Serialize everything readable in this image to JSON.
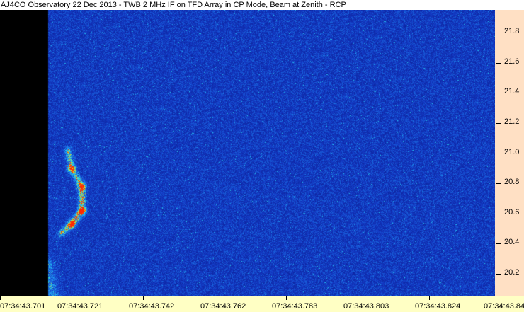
{
  "title": "AJ4CO Observatory 22 Dec 2013 - TWB 2 MHz IF on TFD Array in CP Mode, Beam at Zenith - RCP",
  "chart_data": {
    "type": "heatmap",
    "title": "AJ4CO Observatory 22 Dec 2013 - TWB 2 MHz IF on TFD Array in CP Mode, Beam at Zenith - RCP",
    "xlabel": "",
    "ylabel": "",
    "x_tick_labels": [
      "07:34:43.701",
      "07:34:43.721",
      "07:34:43.742",
      "07:34:43.762",
      "07:34:43.783",
      "07:34:43.803",
      "07:34:43.824",
      "07:34:43.844"
    ],
    "y_ticks": [
      21.8,
      21.6,
      21.4,
      21.2,
      21.0,
      20.8,
      20.6,
      20.4,
      20.2
    ],
    "ylim": [
      20.05,
      21.95
    ],
    "y_axis_position": "right",
    "colormap": [
      "#000000",
      "#0a1e9c",
      "#1446d2",
      "#1ec8f0",
      "#f0f000",
      "#ff2000"
    ],
    "background_noise_color": "#1a3fb8",
    "no_data_color": "#000000",
    "features": [
      {
        "name": "",
        "shape": "arc",
        "points": [
          [
            43.7205,
            21.02
          ],
          [
            43.7215,
            20.9
          ],
          [
            43.7245,
            20.78
          ],
          [
            43.7245,
            20.62
          ],
          [
            43.7215,
            20.53
          ],
          [
            43.7185,
            20.47
          ]
        ]
      },
      {
        "name": "",
        "shape": "streak",
        "points": [
          [
            43.7143,
            20.28
          ],
          [
            43.7165,
            20.02
          ]
        ]
      }
    ]
  },
  "colors": {
    "title_bg": "#ffffff",
    "y_axis_bg": "#ffe0c4",
    "x_axis_bg": "#ffffc4"
  }
}
